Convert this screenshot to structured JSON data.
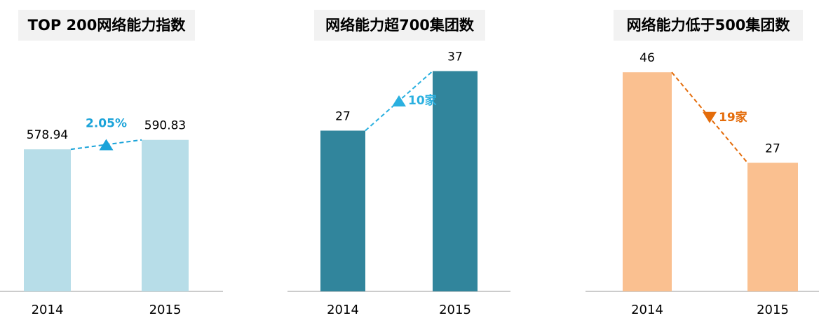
{
  "chart_data": [
    {
      "type": "bar",
      "title": "TOP 200网络能力指数",
      "categories": [
        "2014",
        "2015"
      ],
      "values": [
        578.94,
        590.83
      ],
      "color": "#b7dde8",
      "ylim": [
        400,
        700
      ],
      "annotation": "2.05%",
      "annotation_color": "#1aa3d9",
      "trend": "up"
    },
    {
      "type": "bar",
      "title": "网络能力超700集团数",
      "categories": [
        "2014",
        "2015"
      ],
      "values": [
        27,
        37
      ],
      "color": "#31859c",
      "ylim": [
        0,
        40
      ],
      "annotation": "10家",
      "annotation_color": "#2ab0e0",
      "trend": "up"
    },
    {
      "type": "bar",
      "title": "网络能力低于500集团数",
      "categories": [
        "2014",
        "2015"
      ],
      "values": [
        46,
        27
      ],
      "color": "#fac090",
      "ylim": [
        0,
        50
      ],
      "annotation": "19家",
      "annotation_color": "#e46c0a",
      "trend": "down"
    }
  ]
}
